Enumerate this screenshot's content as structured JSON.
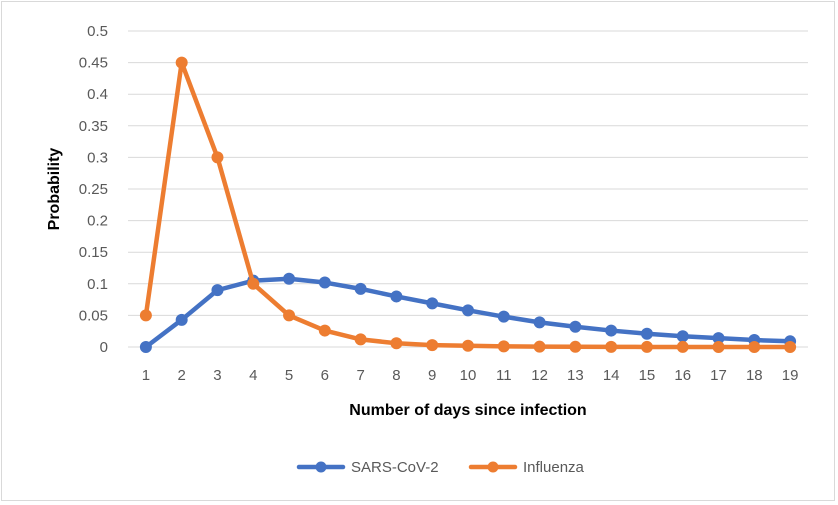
{
  "chart_data": {
    "type": "line",
    "title": "",
    "xlabel": "Number of days since infection",
    "ylabel": "Probability",
    "x": [
      1,
      2,
      3,
      4,
      5,
      6,
      7,
      8,
      9,
      10,
      11,
      12,
      13,
      14,
      15,
      16,
      17,
      18,
      19
    ],
    "y_ticks": [
      "0",
      "0.05",
      "0.1",
      "0.15",
      "0.2",
      "0.25",
      "0.3",
      "0.35",
      "0.4",
      "0.45",
      "0.5"
    ],
    "ylim": [
      0,
      0.5
    ],
    "grid": true,
    "legend_position": "bottom",
    "series": [
      {
        "name": "SARS-CoV-2",
        "color": "#4472C4",
        "values": [
          0.0,
          0.043,
          0.09,
          0.105,
          0.108,
          0.102,
          0.092,
          0.08,
          0.069,
          0.058,
          0.048,
          0.039,
          0.032,
          0.026,
          0.021,
          0.017,
          0.014,
          0.011,
          0.009
        ]
      },
      {
        "name": "Influenza",
        "color": "#ED7D31",
        "values": [
          0.05,
          0.45,
          0.3,
          0.1,
          0.05,
          0.026,
          0.012,
          0.006,
          0.003,
          0.002,
          0.001,
          0.0005,
          0.0003,
          0.0002,
          0.0001,
          0.0001,
          0.0,
          0.0,
          0.0
        ]
      }
    ]
  }
}
